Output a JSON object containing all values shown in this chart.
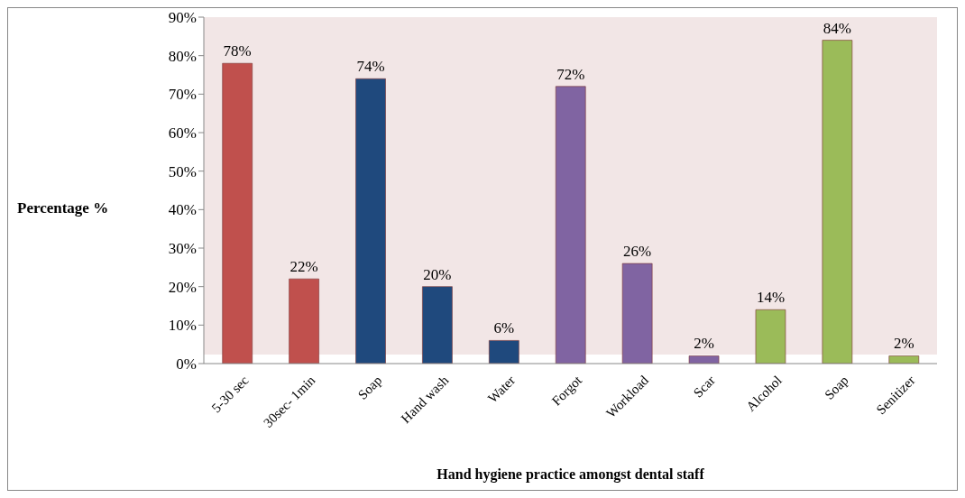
{
  "chart_data": {
    "type": "bar",
    "xlabel": "Hand hygiene practice amongst dental staff",
    "ylabel": "Percentage %",
    "categories": [
      "5-30 sec",
      "30sec- 1min",
      "Soap",
      "Hand wash",
      "Water",
      "Forgot",
      "Workload",
      "Scar",
      "Alcohol",
      "Soap",
      "Senitizer"
    ],
    "values": [
      78,
      22,
      74,
      20,
      6,
      72,
      26,
      2,
      14,
      84,
      2
    ],
    "value_labels": [
      "78%",
      "22%",
      "74%",
      "20%",
      "6%",
      "72%",
      "26%",
      "2%",
      "14%",
      "84%",
      "2%"
    ],
    "colors": [
      "#c0504d",
      "#c0504d",
      "#1f497d",
      "#1f497d",
      "#1f497d",
      "#8064a2",
      "#8064a2",
      "#8064a2",
      "#9bbb59",
      "#9bbb59",
      "#9bbb59"
    ],
    "ylim": [
      0,
      90
    ],
    "yticks": [
      {
        "value": 0,
        "label": "0%"
      },
      {
        "value": 10,
        "label": "10%"
      },
      {
        "value": 20,
        "label": "20%"
      },
      {
        "value": 30,
        "label": "30%"
      },
      {
        "value": 40,
        "label": "40%"
      },
      {
        "value": 50,
        "label": "50%"
      },
      {
        "value": 60,
        "label": "60%"
      },
      {
        "value": 70,
        "label": "70%"
      },
      {
        "value": 80,
        "label": "80%"
      },
      {
        "value": 90,
        "label": "90%"
      }
    ],
    "grid": false,
    "legend": false
  }
}
